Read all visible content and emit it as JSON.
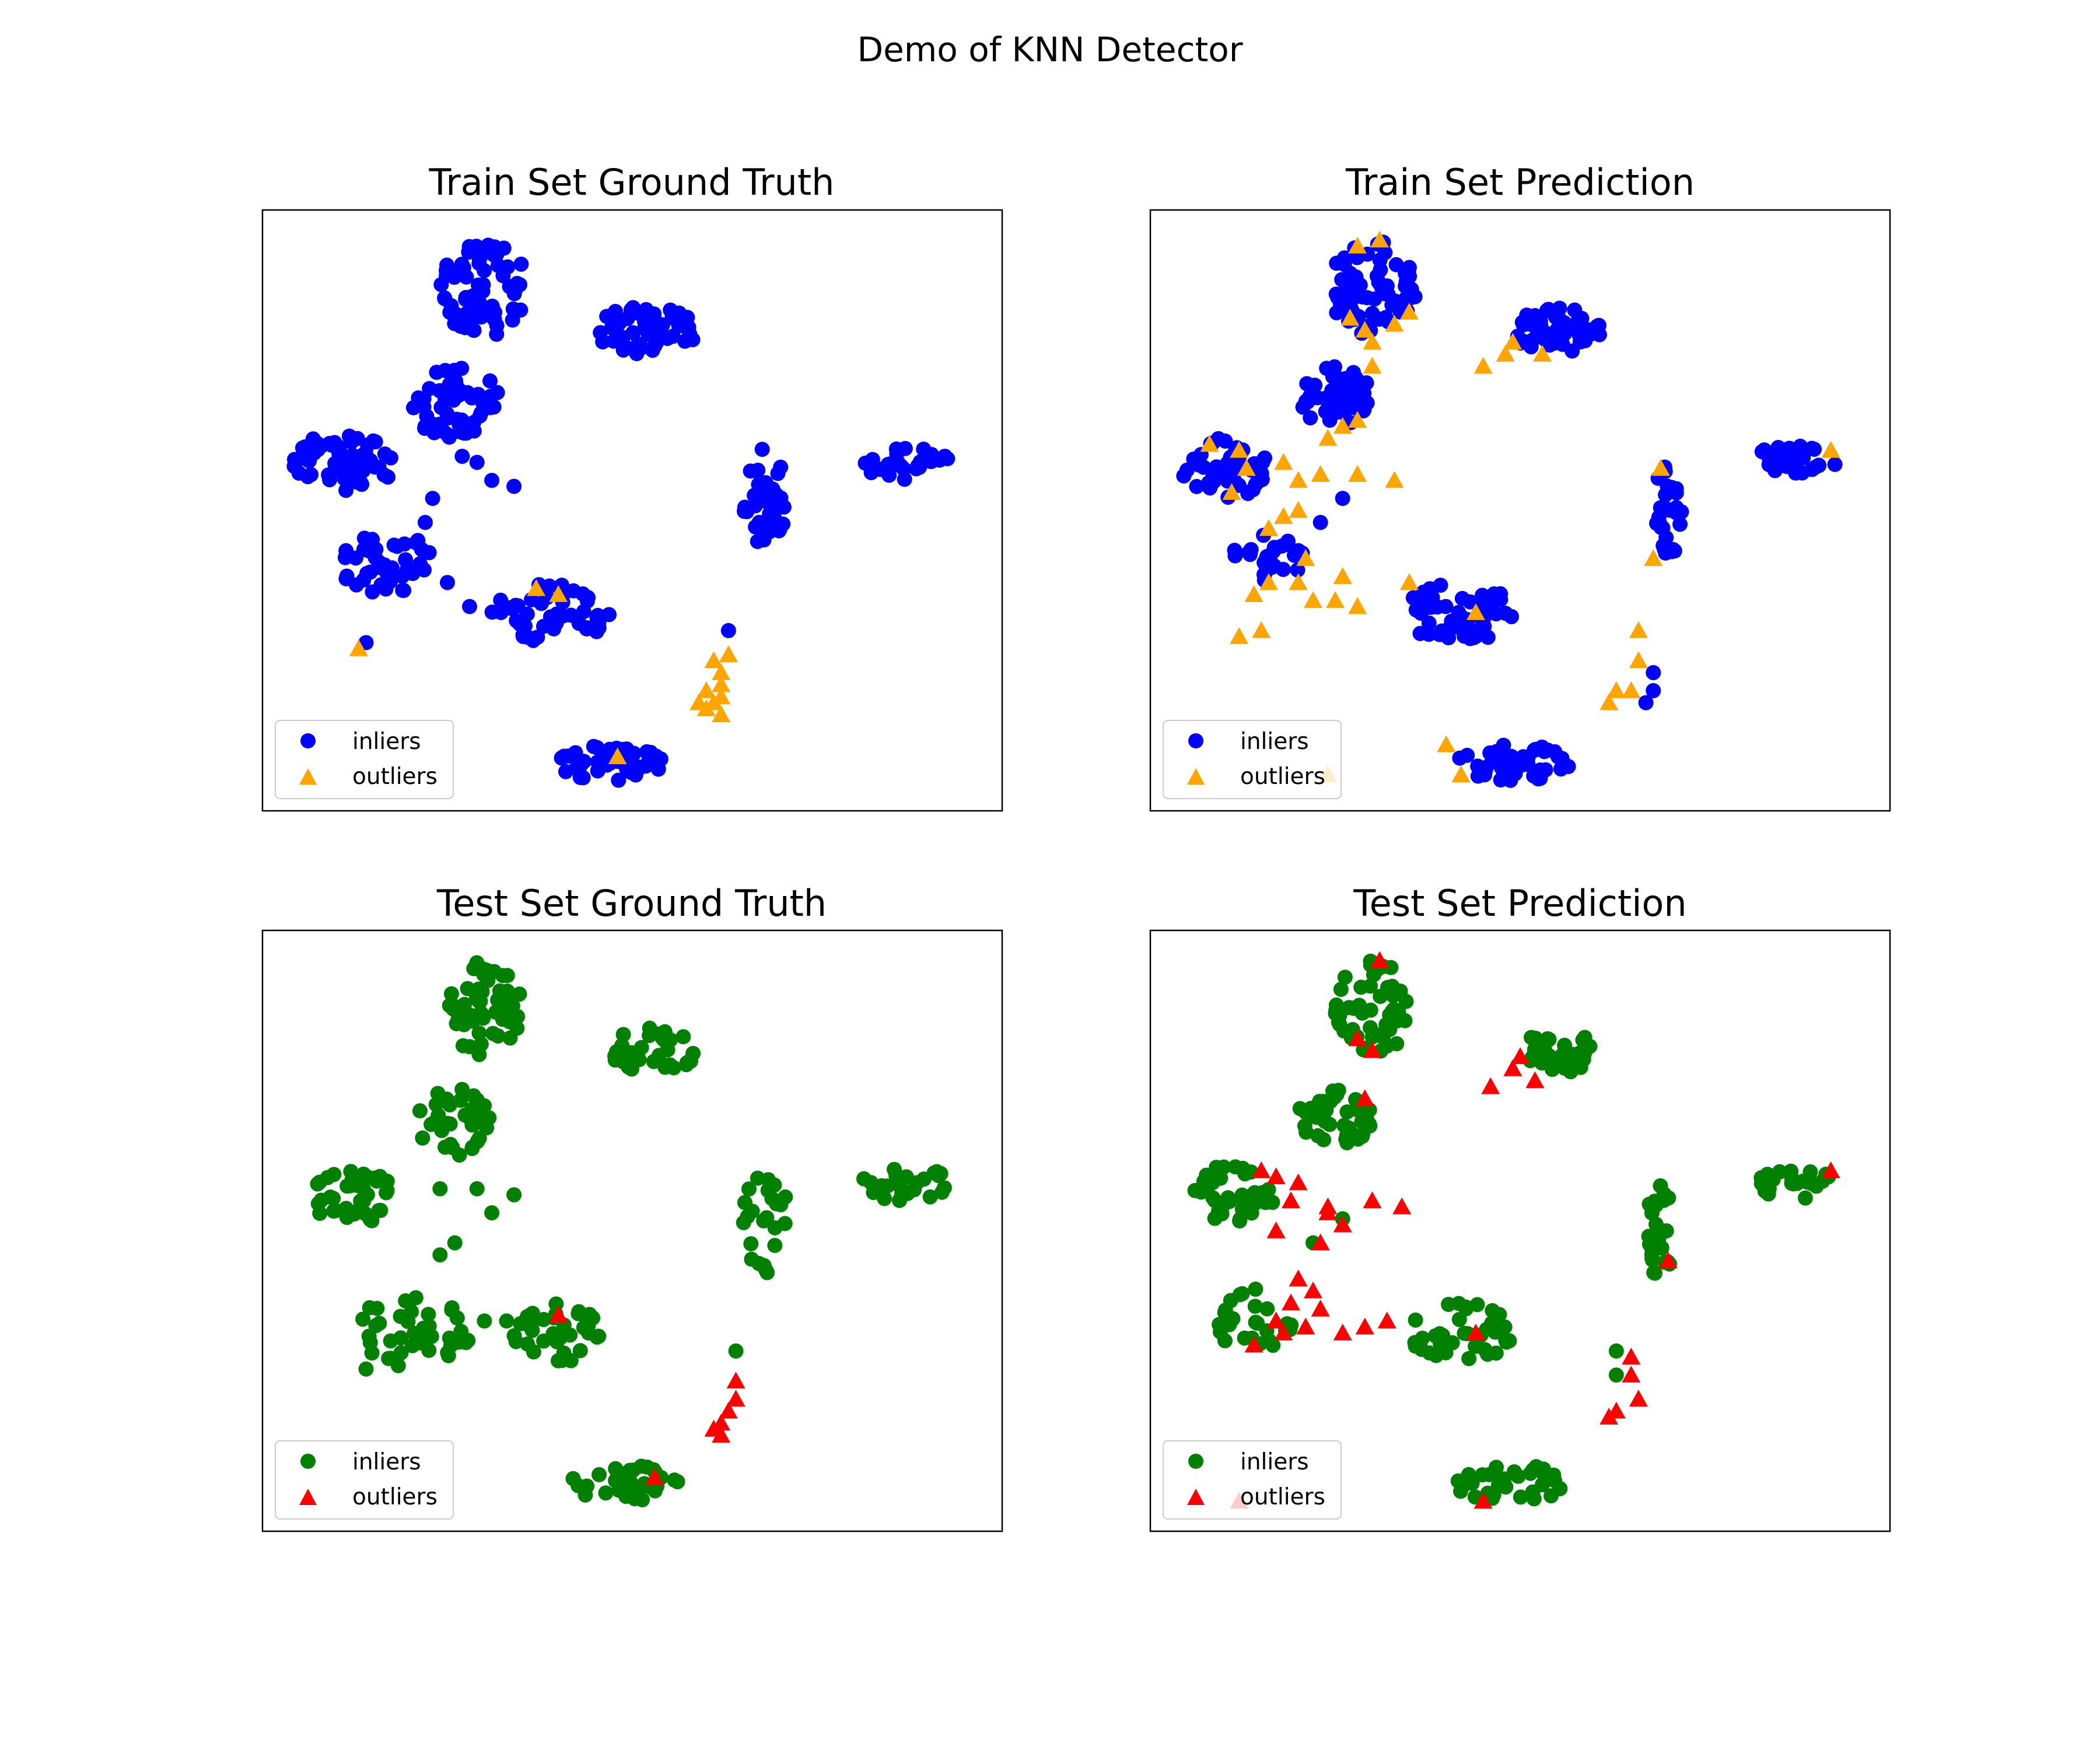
{
  "figure": {
    "title": "Demo of KNN Detector"
  },
  "chart_data": [
    {
      "type": "scatter",
      "title": "Train Set Ground Truth",
      "xlim": [
        0,
        100
      ],
      "ylim": [
        0,
        100
      ],
      "grid": false,
      "axis_ticks": false,
      "legend_placement": "lower-left",
      "series": [
        {
          "name": "inliers",
          "marker": "circle",
          "color": "#0000ff",
          "clusters": [
            {
              "cx": 30,
              "cy": 87,
              "rx": 6,
              "ry": 8,
              "n": 70
            },
            {
              "cx": 52,
              "cy": 80,
              "rx": 7,
              "ry": 4,
              "n": 50
            },
            {
              "cx": 26,
              "cy": 68,
              "rx": 6,
              "ry": 6,
              "n": 55
            },
            {
              "cx": 11,
              "cy": 58,
              "rx": 7,
              "ry": 5,
              "n": 55
            },
            {
              "cx": 17,
              "cy": 41,
              "rx": 7,
              "ry": 5,
              "n": 40
            },
            {
              "cx": 39,
              "cy": 33,
              "rx": 8,
              "ry": 5,
              "n": 55
            },
            {
              "cx": 68,
              "cy": 52,
              "rx": 3,
              "ry": 9,
              "n": 35
            },
            {
              "cx": 87,
              "cy": 58,
              "rx": 6,
              "ry": 3,
              "n": 30
            },
            {
              "cx": 47,
              "cy": 8,
              "rx": 8,
              "ry": 3,
              "n": 45
            }
          ],
          "points": [
            [
              23,
              52
            ],
            [
              22,
              48
            ],
            [
              25,
              38
            ],
            [
              21,
              45
            ],
            [
              29,
              58
            ],
            [
              31,
              55
            ],
            [
              34,
              54
            ],
            [
              27,
              59
            ],
            [
              28,
              34
            ],
            [
              14,
              28
            ],
            [
              63,
              30
            ]
          ]
        },
        {
          "name": "outliers",
          "marker": "triangle",
          "color": "#ffa500",
          "points": [
            [
              37,
              37
            ],
            [
              40,
              36
            ],
            [
              13,
              27
            ],
            [
              48,
              9
            ],
            [
              61,
              25
            ],
            [
              62,
              21
            ],
            [
              61,
              18
            ],
            [
              62,
              23
            ],
            [
              63,
              26
            ],
            [
              60,
              20
            ],
            [
              62,
              16
            ],
            [
              60,
              17
            ],
            [
              59,
              18
            ],
            [
              62,
              19
            ]
          ]
        }
      ],
      "legend": [
        "inliers",
        "outliers"
      ]
    },
    {
      "type": "scatter",
      "title": "Train Set Prediction",
      "xlim": [
        0,
        100
      ],
      "ylim": [
        0,
        100
      ],
      "grid": false,
      "axis_ticks": false,
      "legend_placement": "lower-left",
      "series": [
        {
          "name": "inliers",
          "marker": "circle",
          "color": "#0000ff",
          "clusters": [
            {
              "cx": 30,
              "cy": 87,
              "rx": 6,
              "ry": 8,
              "n": 70
            },
            {
              "cx": 55,
              "cy": 80,
              "rx": 6,
              "ry": 4,
              "n": 50
            },
            {
              "cx": 25,
              "cy": 69,
              "rx": 5,
              "ry": 5,
              "n": 50
            },
            {
              "cx": 10,
              "cy": 57,
              "rx": 6,
              "ry": 5,
              "n": 50
            },
            {
              "cx": 42,
              "cy": 33,
              "rx": 8,
              "ry": 5,
              "n": 55
            },
            {
              "cx": 70,
              "cy": 50,
              "rx": 2,
              "ry": 8,
              "n": 30
            },
            {
              "cx": 87,
              "cy": 58,
              "rx": 6,
              "ry": 3,
              "n": 30
            },
            {
              "cx": 49,
              "cy": 8,
              "rx": 8,
              "ry": 3,
              "n": 45
            },
            {
              "cx": 16,
              "cy": 42,
              "rx": 5,
              "ry": 4,
              "n": 25
            }
          ],
          "points": [
            [
              26,
              52
            ],
            [
              23,
              48
            ],
            [
              68,
              20
            ],
            [
              68,
              23
            ],
            [
              67,
              18
            ]
          ]
        },
        {
          "name": "outliers",
          "marker": "triangle",
          "color": "#ffa500",
          "points": [
            [
              28,
              94
            ],
            [
              31,
              95
            ],
            [
              27,
              82
            ],
            [
              29,
              80
            ],
            [
              33,
              81
            ],
            [
              35,
              83
            ],
            [
              30,
              78
            ],
            [
              30,
              74
            ],
            [
              45,
              74
            ],
            [
              48,
              76
            ],
            [
              49,
              78
            ],
            [
              53,
              76
            ],
            [
              26,
              64
            ],
            [
              24,
              62
            ],
            [
              28,
              65
            ],
            [
              8,
              61
            ],
            [
              12,
              60
            ],
            [
              13,
              57
            ],
            [
              18,
              58
            ],
            [
              20,
              55
            ],
            [
              23,
              56
            ],
            [
              28,
              56
            ],
            [
              33,
              55
            ],
            [
              11,
              53
            ],
            [
              20,
              50
            ],
            [
              16,
              47
            ],
            [
              18,
              49
            ],
            [
              21,
              42
            ],
            [
              20,
              38
            ],
            [
              16,
              38
            ],
            [
              14,
              36
            ],
            [
              12,
              29
            ],
            [
              15,
              30
            ],
            [
              22,
              35
            ],
            [
              25,
              35
            ],
            [
              28,
              34
            ],
            [
              26,
              39
            ],
            [
              35,
              38
            ],
            [
              44,
              33
            ],
            [
              66,
              30
            ],
            [
              66,
              25
            ],
            [
              65,
              20
            ],
            [
              62,
              18
            ],
            [
              63,
              20
            ],
            [
              69,
              57
            ],
            [
              68,
              42
            ],
            [
              92,
              60
            ],
            [
              40,
              11
            ],
            [
              42,
              6
            ],
            [
              24,
              6
            ]
          ]
        }
      ],
      "legend": [
        "inliers",
        "outliers"
      ]
    },
    {
      "type": "scatter",
      "title": "Test Set Ground Truth",
      "xlim": [
        0,
        100
      ],
      "ylim": [
        0,
        100
      ],
      "grid": false,
      "axis_ticks": false,
      "legend_placement": "lower-left",
      "series": [
        {
          "name": "inliers",
          "marker": "circle",
          "color": "#008000",
          "clusters": [
            {
              "cx": 30,
              "cy": 87,
              "rx": 5,
              "ry": 8,
              "n": 55
            },
            {
              "cx": 53,
              "cy": 80,
              "rx": 6,
              "ry": 4,
              "n": 35
            },
            {
              "cx": 26,
              "cy": 68,
              "rx": 5,
              "ry": 6,
              "n": 40
            },
            {
              "cx": 12,
              "cy": 56,
              "rx": 6,
              "ry": 5,
              "n": 40
            },
            {
              "cx": 40,
              "cy": 33,
              "rx": 6,
              "ry": 5,
              "n": 40
            },
            {
              "cx": 68,
              "cy": 52,
              "rx": 3,
              "ry": 9,
              "n": 25
            },
            {
              "cx": 87,
              "cy": 58,
              "rx": 6,
              "ry": 3,
              "n": 25
            },
            {
              "cx": 49,
              "cy": 8,
              "rx": 8,
              "ry": 3,
              "n": 35
            },
            {
              "cx": 20,
              "cy": 33,
              "rx": 8,
              "ry": 6,
              "n": 40
            }
          ],
          "points": [
            [
              24,
              57
            ],
            [
              29,
              57
            ],
            [
              34,
              56
            ],
            [
              31,
              53
            ],
            [
              26,
              48
            ],
            [
              24,
              46
            ],
            [
              30,
              35
            ],
            [
              33,
              35
            ],
            [
              14,
              27
            ],
            [
              64,
              30
            ]
          ]
        },
        {
          "name": "outliers",
          "marker": "triangle",
          "color": "#ff0000",
          "points": [
            [
              40,
              36
            ],
            [
              53,
              9
            ],
            [
              64,
              25
            ],
            [
              64,
              22
            ],
            [
              63,
              20
            ],
            [
              62,
              18
            ],
            [
              61,
              17
            ],
            [
              62,
              16
            ]
          ]
        }
      ],
      "legend": [
        "inliers",
        "outliers"
      ]
    },
    {
      "type": "scatter",
      "title": "Test Set Prediction",
      "xlim": [
        0,
        100
      ],
      "ylim": [
        0,
        100
      ],
      "grid": false,
      "axis_ticks": false,
      "legend_placement": "lower-left",
      "series": [
        {
          "name": "inliers",
          "marker": "circle",
          "color": "#008000",
          "clusters": [
            {
              "cx": 30,
              "cy": 87,
              "rx": 5,
              "ry": 8,
              "n": 55
            },
            {
              "cx": 55,
              "cy": 80,
              "rx": 5,
              "ry": 4,
              "n": 35
            },
            {
              "cx": 25,
              "cy": 69,
              "rx": 5,
              "ry": 5,
              "n": 40
            },
            {
              "cx": 11,
              "cy": 56,
              "rx": 6,
              "ry": 5,
              "n": 40
            },
            {
              "cx": 42,
              "cy": 33,
              "rx": 7,
              "ry": 5,
              "n": 40
            },
            {
              "cx": 69,
              "cy": 50,
              "rx": 2,
              "ry": 8,
              "n": 25
            },
            {
              "cx": 87,
              "cy": 58,
              "rx": 6,
              "ry": 3,
              "n": 25
            },
            {
              "cx": 49,
              "cy": 8,
              "rx": 8,
              "ry": 3,
              "n": 35
            },
            {
              "cx": 15,
              "cy": 35,
              "rx": 6,
              "ry": 6,
              "n": 25
            }
          ],
          "points": [
            [
              26,
              52
            ],
            [
              22,
              48
            ],
            [
              63,
              30
            ],
            [
              63,
              26
            ]
          ]
        },
        {
          "name": "outliers",
          "marker": "triangle",
          "color": "#ff0000",
          "points": [
            [
              31,
              95
            ],
            [
              28,
              82
            ],
            [
              30,
              80
            ],
            [
              29,
              72
            ],
            [
              46,
              74
            ],
            [
              49,
              77
            ],
            [
              50,
              79
            ],
            [
              52,
              75
            ],
            [
              15,
              60
            ],
            [
              17,
              59
            ],
            [
              20,
              58
            ],
            [
              19,
              55
            ],
            [
              24,
              54
            ],
            [
              30,
              55
            ],
            [
              34,
              54
            ],
            [
              26,
              51
            ],
            [
              17,
              50
            ],
            [
              24,
              53
            ],
            [
              23,
              48
            ],
            [
              20,
              42
            ],
            [
              22,
              40
            ],
            [
              19,
              38
            ],
            [
              18,
              33
            ],
            [
              14,
              31
            ],
            [
              23,
              37
            ],
            [
              21,
              34
            ],
            [
              17,
              35
            ],
            [
              26,
              33
            ],
            [
              29,
              34
            ],
            [
              32,
              35
            ],
            [
              44,
              33
            ],
            [
              65,
              29
            ],
            [
              65,
              26
            ],
            [
              62,
              19
            ],
            [
              63,
              20
            ],
            [
              66,
              22
            ],
            [
              70,
              45
            ],
            [
              92,
              60
            ],
            [
              45,
              5
            ],
            [
              12,
              5
            ]
          ]
        }
      ],
      "legend": [
        "inliers",
        "outliers"
      ]
    }
  ]
}
